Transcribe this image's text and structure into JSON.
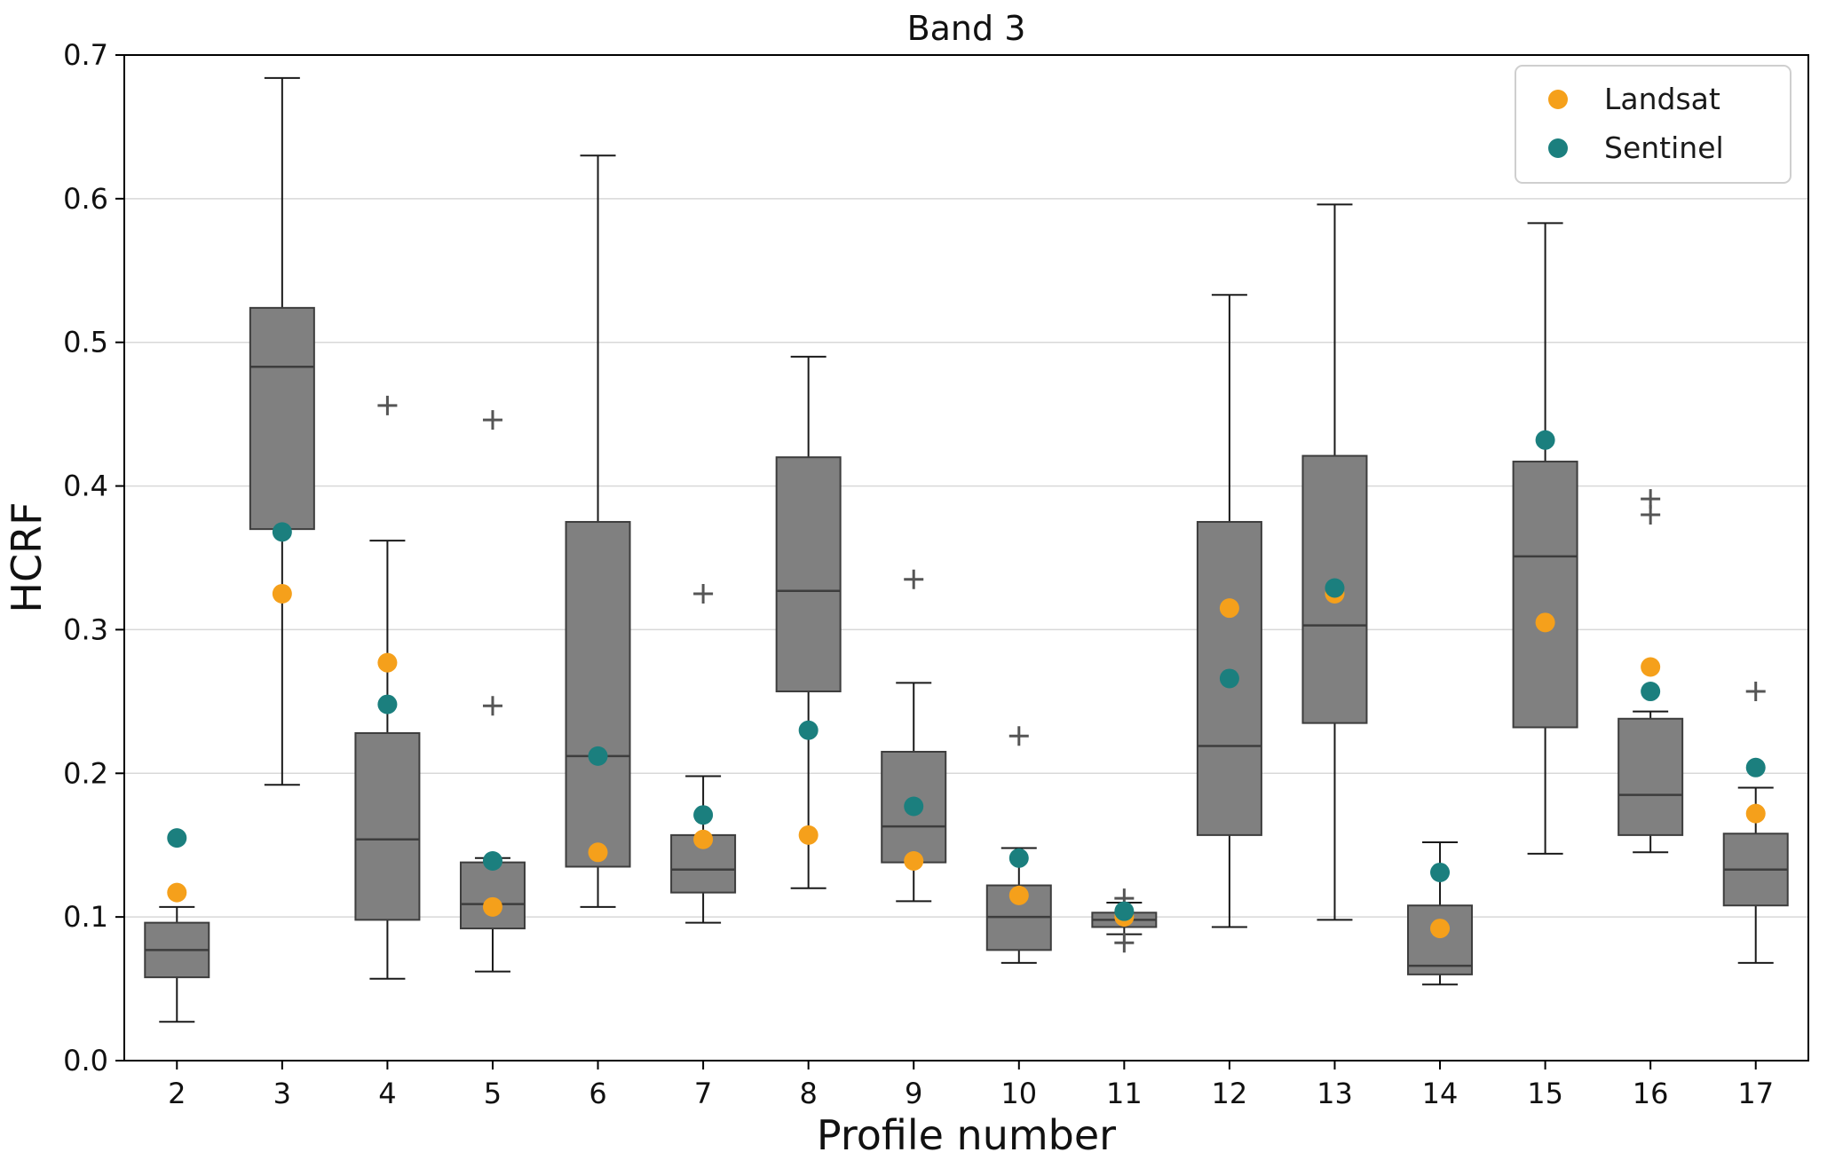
{
  "chart_data": {
    "type": "boxplot",
    "title": "Band 3",
    "xlabel": "Profile number",
    "ylabel": "HCRF",
    "ylim": [
      0.0,
      0.7
    ],
    "yticks": [
      0.0,
      0.1,
      0.2,
      0.3,
      0.4,
      0.5,
      0.6,
      0.7
    ],
    "grid": true,
    "legend_position": "upper right",
    "categories": [
      2,
      3,
      4,
      5,
      6,
      7,
      8,
      9,
      10,
      11,
      12,
      13,
      14,
      15,
      16,
      17
    ],
    "boxes": [
      {
        "whislo": 0.027,
        "q1": 0.058,
        "med": 0.077,
        "q3": 0.096,
        "whishi": 0.107,
        "fliers": []
      },
      {
        "whislo": 0.192,
        "q1": 0.37,
        "med": 0.483,
        "q3": 0.524,
        "whishi": 0.684,
        "fliers": []
      },
      {
        "whislo": 0.057,
        "q1": 0.098,
        "med": 0.154,
        "q3": 0.228,
        "whishi": 0.362,
        "fliers": [
          0.456
        ]
      },
      {
        "whislo": 0.062,
        "q1": 0.092,
        "med": 0.109,
        "q3": 0.138,
        "whishi": 0.141,
        "fliers": [
          0.247,
          0.446
        ]
      },
      {
        "whislo": 0.107,
        "q1": 0.135,
        "med": 0.212,
        "q3": 0.375,
        "whishi": 0.63,
        "fliers": []
      },
      {
        "whislo": 0.096,
        "q1": 0.117,
        "med": 0.133,
        "q3": 0.157,
        "whishi": 0.198,
        "fliers": [
          0.325
        ]
      },
      {
        "whislo": 0.12,
        "q1": 0.257,
        "med": 0.327,
        "q3": 0.42,
        "whishi": 0.49,
        "fliers": []
      },
      {
        "whislo": 0.111,
        "q1": 0.138,
        "med": 0.163,
        "q3": 0.215,
        "whishi": 0.263,
        "fliers": [
          0.335
        ]
      },
      {
        "whislo": 0.068,
        "q1": 0.077,
        "med": 0.1,
        "q3": 0.122,
        "whishi": 0.148,
        "fliers": [
          0.226
        ]
      },
      {
        "whislo": 0.088,
        "q1": 0.093,
        "med": 0.098,
        "q3": 0.103,
        "whishi": 0.11,
        "fliers": [
          0.082,
          0.113
        ]
      },
      {
        "whislo": 0.093,
        "q1": 0.157,
        "med": 0.219,
        "q3": 0.375,
        "whishi": 0.533,
        "fliers": []
      },
      {
        "whislo": 0.098,
        "q1": 0.235,
        "med": 0.303,
        "q3": 0.421,
        "whishi": 0.596,
        "fliers": []
      },
      {
        "whislo": 0.053,
        "q1": 0.06,
        "med": 0.066,
        "q3": 0.108,
        "whishi": 0.152,
        "fliers": []
      },
      {
        "whislo": 0.144,
        "q1": 0.232,
        "med": 0.351,
        "q3": 0.417,
        "whishi": 0.583,
        "fliers": []
      },
      {
        "whislo": 0.145,
        "q1": 0.157,
        "med": 0.185,
        "q3": 0.238,
        "whishi": 0.243,
        "fliers": [
          0.38,
          0.391
        ]
      },
      {
        "whislo": 0.068,
        "q1": 0.108,
        "med": 0.133,
        "q3": 0.158,
        "whishi": 0.19,
        "fliers": [
          0.257
        ]
      }
    ],
    "series": [
      {
        "name": "Landsat",
        "color": "#F5A01B",
        "values": [
          0.117,
          0.325,
          0.277,
          0.107,
          0.145,
          0.154,
          0.157,
          0.139,
          0.115,
          0.1,
          0.315,
          0.325,
          0.092,
          0.305,
          0.274,
          0.172
        ]
      },
      {
        "name": "Sentinel",
        "color": "#1B7F7E",
        "values": [
          0.155,
          0.368,
          0.248,
          0.139,
          0.212,
          0.171,
          0.23,
          0.177,
          0.141,
          0.104,
          0.266,
          0.329,
          0.131,
          0.432,
          0.257,
          0.204
        ]
      }
    ],
    "colors": {
      "box_face": "#808080",
      "box_edge": "#3d3d3d",
      "median": "#3d3d3d",
      "whisker": "#1a1a1a",
      "flier": "#555555",
      "grid": "#d8d8d8",
      "axis": "#000000",
      "legend_border": "#cfcfcf"
    }
  }
}
